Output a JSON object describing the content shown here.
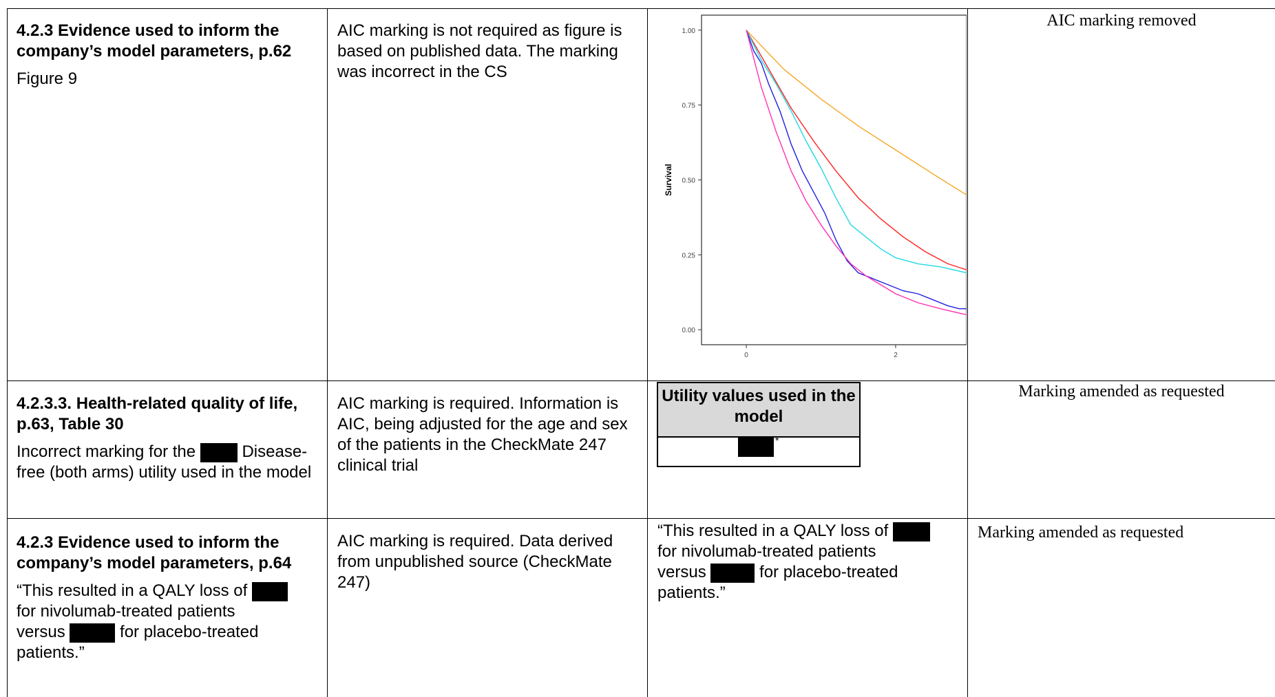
{
  "rows": [
    {
      "issue_title": "4.2.3 Evidence used to inform the company’s model parameters, p.62",
      "issue_detail": "Figure 9",
      "justification": "AIC marking is not required as figure is based on published data. The marking was incorrect in the CS",
      "response": "AIC marking removed"
    },
    {
      "issue_title": "4.2.3.3. Health-related quality of life, p.63, Table 30",
      "issue_detail_before": "Incorrect marking for the",
      "issue_detail_after": "Disease-free (both arms) utility used in the model",
      "justification": "AIC marking is required. Information is AIC, being adjusted for the age and sex of the patients in the CheckMate 247 clinical trial",
      "amended_table_header": "Utility values used in the model",
      "amended_table_mark": "*",
      "response": "Marking amended as requested"
    },
    {
      "issue_title": "4.2.3 Evidence used to inform the company’s model parameters, p.64",
      "quote_part1": "“This resulted in a QALY loss of",
      "quote_part2": "for nivolumab-treated patients",
      "quote_part3": "versus",
      "quote_part4": "for placebo-treated",
      "quote_part5": "patients.”",
      "justification": "AIC marking is required. Data derived from  unpublished source (CheckMate 247)",
      "response": "Marking amended as requested"
    }
  ],
  "chart_data": {
    "type": "line",
    "title": "",
    "xlabel": "",
    "ylabel": "Survival",
    "xlim": [
      -0.6,
      2.95
    ],
    "ylim": [
      -0.05,
      1.05
    ],
    "x_ticks": [
      "0",
      "2"
    ],
    "y_ticks": [
      "0.00",
      "0.25",
      "0.50",
      "0.75",
      "1.00"
    ],
    "series": [
      {
        "color": "#f5a623",
        "x": [
          0,
          0.5,
          1.0,
          1.5,
          2.0,
          2.5,
          2.95
        ],
        "y": [
          1.0,
          0.87,
          0.77,
          0.68,
          0.6,
          0.52,
          0.45
        ]
      },
      {
        "color": "#ff2020",
        "x": [
          0,
          0.3,
          0.6,
          0.9,
          1.2,
          1.5,
          1.8,
          2.1,
          2.4,
          2.7,
          2.95
        ],
        "y": [
          1.0,
          0.87,
          0.74,
          0.63,
          0.53,
          0.44,
          0.37,
          0.31,
          0.26,
          0.22,
          0.2
        ]
      },
      {
        "color": "#20d8e0",
        "x": [
          0,
          0.2,
          0.4,
          0.6,
          0.8,
          1.0,
          1.2,
          1.4,
          1.6,
          1.8,
          2.0,
          2.3,
          2.6,
          2.95
        ],
        "y": [
          1.0,
          0.9,
          0.82,
          0.73,
          0.63,
          0.54,
          0.44,
          0.35,
          0.31,
          0.27,
          0.24,
          0.22,
          0.21,
          0.19
        ]
      },
      {
        "color": "#2020e0",
        "x": [
          0,
          0.1,
          0.2,
          0.3,
          0.45,
          0.6,
          0.75,
          0.9,
          1.05,
          1.2,
          1.35,
          1.5,
          1.7,
          1.9,
          2.1,
          2.3,
          2.5,
          2.7,
          2.85,
          2.95
        ],
        "y": [
          1.0,
          0.93,
          0.89,
          0.82,
          0.73,
          0.62,
          0.53,
          0.46,
          0.39,
          0.3,
          0.23,
          0.19,
          0.17,
          0.15,
          0.13,
          0.12,
          0.1,
          0.08,
          0.07,
          0.07
        ]
      },
      {
        "color": "#ff30b0",
        "x": [
          0,
          0.2,
          0.4,
          0.6,
          0.8,
          1.0,
          1.2,
          1.4,
          1.6,
          1.8,
          2.0,
          2.3,
          2.6,
          2.95
        ],
        "y": [
          1.0,
          0.81,
          0.66,
          0.53,
          0.43,
          0.35,
          0.28,
          0.22,
          0.18,
          0.15,
          0.12,
          0.09,
          0.07,
          0.05
        ]
      }
    ]
  }
}
